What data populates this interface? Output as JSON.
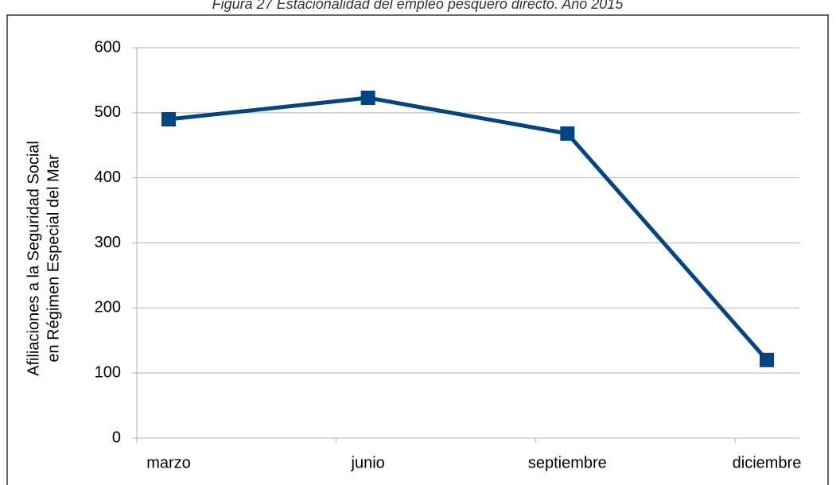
{
  "chart_data": {
    "type": "line",
    "title": "Figura 27 Estacionalidad del empleo pesquero directo. Año 2015",
    "ylabel": [
      "Afiliaciones a la Seguridad Social",
      "en Régimen Especial del Mar"
    ],
    "categories": [
      "marzo",
      "junio",
      "septiembre",
      "diciembre"
    ],
    "series": [
      {
        "name": "Afiliaciones",
        "color": "#004586",
        "values": [
          490,
          523,
          468,
          120
        ]
      }
    ],
    "ylim": [
      0,
      600
    ],
    "yticks": [
      0,
      100,
      200,
      300,
      400,
      500,
      600
    ],
    "grid": true
  }
}
